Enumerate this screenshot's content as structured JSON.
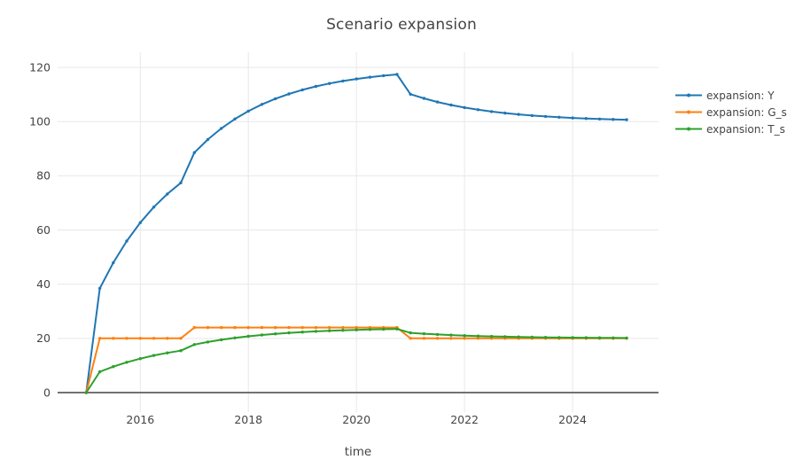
{
  "figure": {
    "title": "Scenario expansion"
  },
  "style": {
    "background": "#ffffff",
    "grid_color": "#e8e8e8",
    "zero_line_color": "#444444",
    "text_color": "#444444",
    "series_colors": {
      "Y": "#1f77b4",
      "G_s": "#ff7f0e",
      "T_s": "#2ca02c"
    }
  },
  "chart_data": {
    "type": "line",
    "title": "Scenario expansion",
    "xlabel": "time",
    "ylabel": "",
    "grid": true,
    "legend_position": "right",
    "x_ticks": [
      2016,
      2018,
      2020,
      2022,
      2024
    ],
    "y_ticks": [
      0,
      20,
      40,
      60,
      80,
      100,
      120
    ],
    "x_range": [
      2014.47,
      2025.59
    ],
    "y_range": [
      -7.2,
      125.6
    ],
    "x": [
      2015.0,
      2015.25,
      2015.5,
      2015.75,
      2016.0,
      2016.25,
      2016.5,
      2016.75,
      2017.0,
      2017.25,
      2017.5,
      2017.75,
      2018.0,
      2018.25,
      2018.5,
      2018.75,
      2019.0,
      2019.25,
      2019.5,
      2019.75,
      2020.0,
      2020.25,
      2020.5,
      2020.75,
      2021.0,
      2021.25,
      2021.5,
      2021.75,
      2022.0,
      2022.25,
      2022.5,
      2022.75,
      2023.0,
      2023.25,
      2023.5,
      2023.75,
      2024.0,
      2024.25,
      2024.5,
      2024.75,
      2025.0
    ],
    "series": [
      {
        "name": "expansion: Y",
        "color": "#1f77b4",
        "values": [
          0,
          38.46,
          47.93,
          55.94,
          62.72,
          68.45,
          73.31,
          77.41,
          88.58,
          93.42,
          97.5,
          100.97,
          103.89,
          106.37,
          108.47,
          110.24,
          111.74,
          113.01,
          114.09,
          115.0,
          115.77,
          116.42,
          116.97,
          117.43,
          110.14,
          108.58,
          107.26,
          106.14,
          105.2,
          104.4,
          103.72,
          103.15,
          102.66,
          102.25,
          101.91,
          101.61,
          101.37,
          101.16,
          100.98,
          100.83,
          100.7
        ]
      },
      {
        "name": "expansion: G_s",
        "color": "#ff7f0e",
        "values": [
          0,
          20,
          20,
          20,
          20,
          20,
          20,
          20,
          24,
          24,
          24,
          24,
          24,
          24,
          24,
          24,
          24,
          24,
          24,
          24,
          24,
          24,
          24,
          24,
          20,
          20,
          20,
          20,
          20,
          20,
          20,
          20,
          20,
          20,
          20,
          20,
          20,
          20,
          20,
          20,
          20
        ]
      },
      {
        "name": "expansion: T_s",
        "color": "#2ca02c",
        "values": [
          0,
          7.69,
          9.59,
          11.19,
          12.54,
          13.69,
          14.66,
          15.48,
          17.72,
          18.68,
          19.5,
          20.19,
          20.78,
          21.27,
          21.69,
          22.05,
          22.35,
          22.6,
          22.82,
          23.0,
          23.15,
          23.28,
          23.39,
          23.49,
          22.03,
          21.72,
          21.45,
          21.23,
          21.04,
          20.88,
          20.74,
          20.63,
          20.53,
          20.45,
          20.38,
          20.32,
          20.27,
          20.23,
          20.2,
          20.17,
          20.14
        ]
      }
    ]
  }
}
